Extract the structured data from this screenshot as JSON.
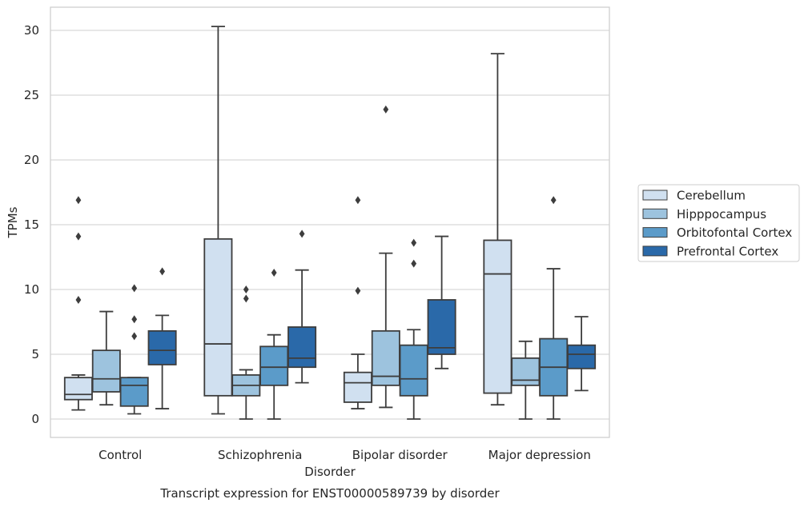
{
  "chart_data": {
    "type": "boxplot",
    "title": "",
    "caption": "Transcript expression for ENST00000589739 by disorder",
    "xlabel": "Disorder",
    "ylabel": "TPMs",
    "ylim": [
      -1.5,
      32
    ],
    "yticks": [
      0,
      5,
      10,
      15,
      20,
      25,
      30
    ],
    "grid": "horizontal",
    "legend_position": "right",
    "categories": [
      "Control",
      "Schizophrenia",
      "Bipolar disorder",
      "Major depression"
    ],
    "series": [
      {
        "name": "Cerebellum",
        "color": "#d0e0f0",
        "boxes": [
          {
            "whislo": 0.7,
            "q1": 1.5,
            "med": 1.9,
            "q3": 3.2,
            "whishi": 3.4,
            "fliers": [
              9.2,
              14.1,
              16.9
            ]
          },
          {
            "whislo": 0.4,
            "q1": 1.8,
            "med": 5.8,
            "q3": 13.9,
            "whishi": 30.3,
            "fliers": []
          },
          {
            "whislo": 0.8,
            "q1": 1.3,
            "med": 2.8,
            "q3": 3.6,
            "whishi": 5.0,
            "fliers": [
              9.9,
              16.9
            ]
          },
          {
            "whislo": 1.1,
            "q1": 2.0,
            "med": 11.2,
            "q3": 13.8,
            "whishi": 28.2,
            "fliers": []
          }
        ]
      },
      {
        "name": "Hipppocampus",
        "color": "#9dc3de",
        "boxes": [
          {
            "whislo": 1.1,
            "q1": 2.1,
            "med": 3.1,
            "q3": 5.3,
            "whishi": 8.3,
            "fliers": []
          },
          {
            "whislo": 0.0,
            "q1": 1.8,
            "med": 2.6,
            "q3": 3.4,
            "whishi": 3.8,
            "fliers": [
              9.3,
              10.0
            ]
          },
          {
            "whislo": 0.9,
            "q1": 2.6,
            "med": 3.3,
            "q3": 6.8,
            "whishi": 12.8,
            "fliers": [
              23.9
            ]
          },
          {
            "whislo": 0.0,
            "q1": 2.6,
            "med": 3.0,
            "q3": 4.7,
            "whishi": 6.0,
            "fliers": []
          }
        ]
      },
      {
        "name": "Orbitofontal Cortex",
        "color": "#5b9bc9",
        "boxes": [
          {
            "whislo": 0.4,
            "q1": 1.0,
            "med": 2.6,
            "q3": 3.2,
            "whishi": 3.2,
            "fliers": [
              6.4,
              7.7,
              10.1
            ]
          },
          {
            "whislo": 0.0,
            "q1": 2.6,
            "med": 4.0,
            "q3": 5.6,
            "whishi": 6.5,
            "fliers": [
              11.3
            ]
          },
          {
            "whislo": 0.0,
            "q1": 1.8,
            "med": 3.1,
            "q3": 5.7,
            "whishi": 6.9,
            "fliers": [
              12.0,
              13.6
            ]
          },
          {
            "whislo": 0.0,
            "q1": 1.8,
            "med": 4.0,
            "q3": 6.2,
            "whishi": 11.6,
            "fliers": [
              16.9
            ]
          }
        ]
      },
      {
        "name": "Prefrontal Cortex",
        "color": "#2a69a9",
        "boxes": [
          {
            "whislo": 0.8,
            "q1": 4.2,
            "med": 5.3,
            "q3": 6.8,
            "whishi": 8.0,
            "fliers": [
              11.4
            ]
          },
          {
            "whislo": 2.8,
            "q1": 4.0,
            "med": 4.7,
            "q3": 7.1,
            "whishi": 11.5,
            "fliers": [
              14.3
            ]
          },
          {
            "whislo": 3.9,
            "q1": 5.0,
            "med": 5.5,
            "q3": 9.2,
            "whishi": 14.1,
            "fliers": []
          },
          {
            "whislo": 2.2,
            "q1": 3.9,
            "med": 5.0,
            "q3": 5.7,
            "whishi": 7.9,
            "fliers": []
          }
        ]
      }
    ]
  }
}
